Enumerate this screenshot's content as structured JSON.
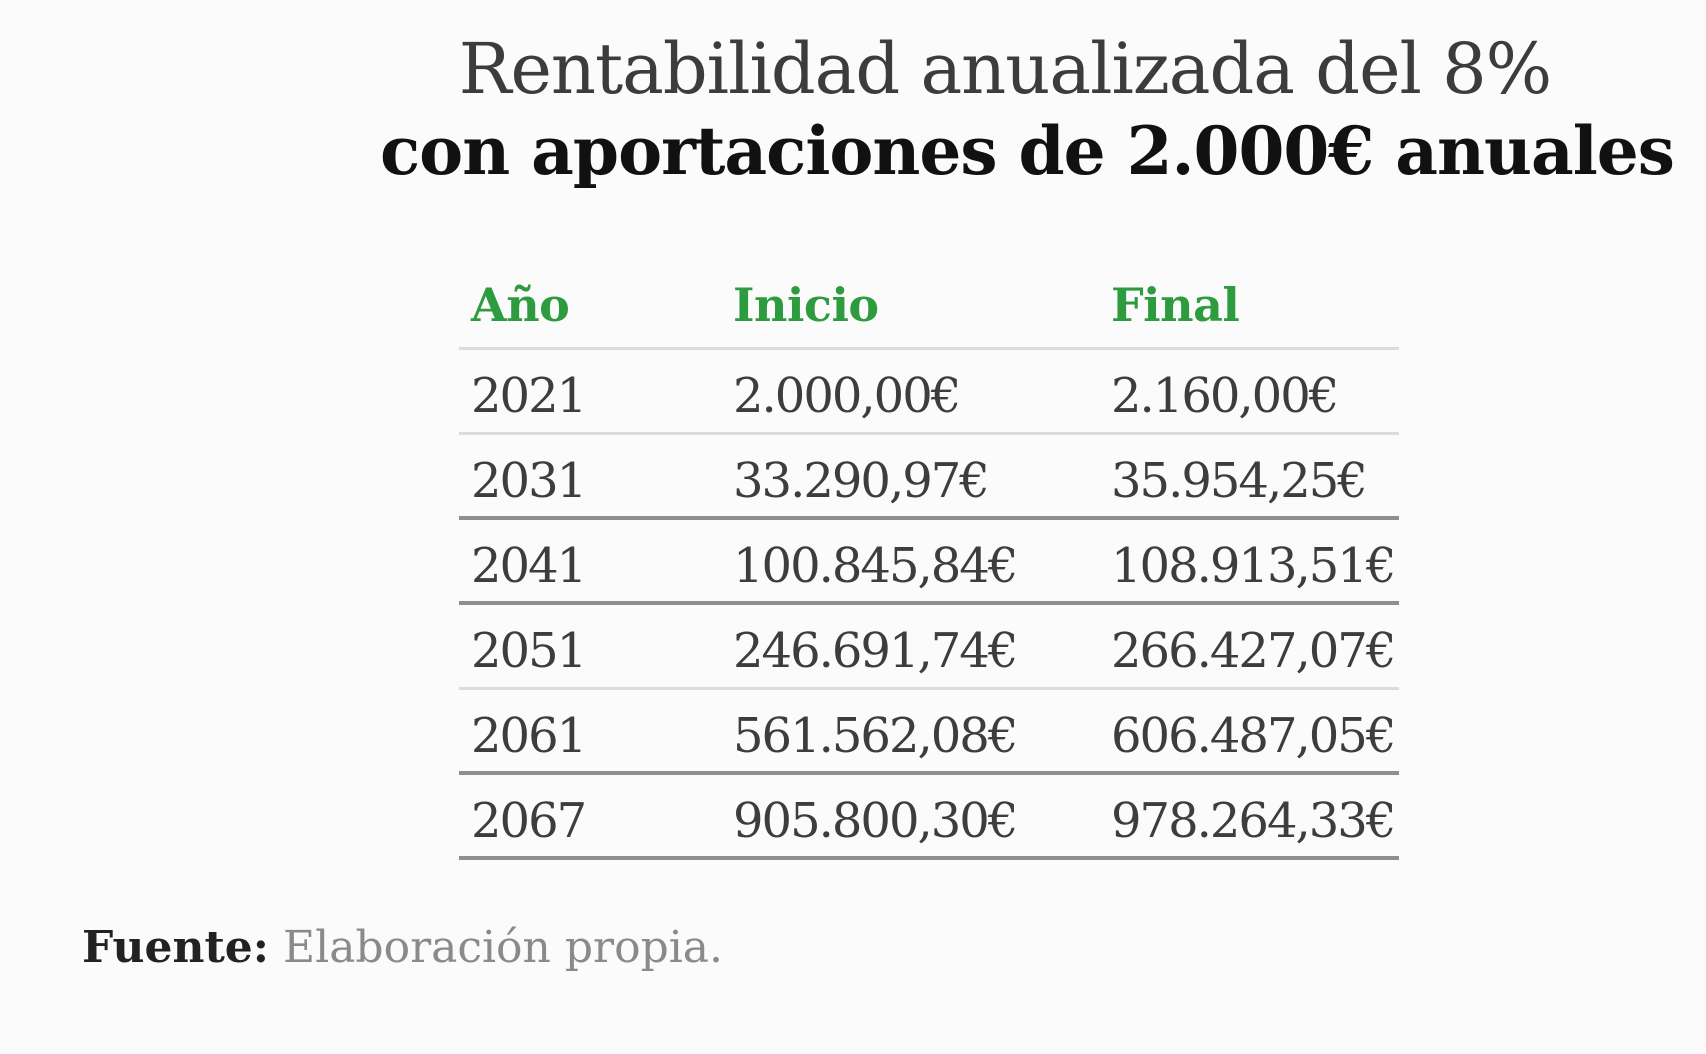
{
  "chart_data": {
    "type": "table",
    "title": "Rentabilidad anualizada del 8%",
    "subtitle": "con aportaciones de 2.000€ anuales",
    "columns": [
      "Año",
      "Inicio",
      "Final"
    ],
    "rows": [
      [
        "2021",
        "2.000,00€",
        "2.160,00€"
      ],
      [
        "2031",
        "33.290,97€",
        "35.954,25€"
      ],
      [
        "2041",
        "100.845,84€",
        "108.913,51€"
      ],
      [
        "2051",
        "246.691,74€",
        "266.427,07€"
      ],
      [
        "2061",
        "561.562,08€",
        "606.487,05€"
      ],
      [
        "2067",
        "905.800,30€",
        "978.264,33€"
      ]
    ],
    "header_color": "#2e9b3e"
  },
  "source": {
    "label": "Fuente:",
    "value": "Elaboración propia."
  }
}
